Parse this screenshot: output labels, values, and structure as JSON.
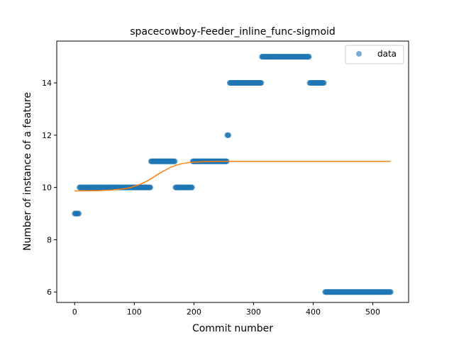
{
  "chart_data": {
    "type": "scatter",
    "title": "spacecowboy-Feeder_inline_func-sigmoid",
    "xlabel": "Commit number",
    "ylabel": "Number of instance of a feature",
    "xlim": [
      -30,
      560
    ],
    "ylim": [
      5.6,
      15.6
    ],
    "xticks": [
      0,
      100,
      200,
      300,
      400,
      500
    ],
    "yticks": [
      6,
      8,
      10,
      12,
      14
    ],
    "grid": false,
    "legend": {
      "location": "top-right",
      "entries": [
        "data"
      ]
    },
    "colors": {
      "data": "#1f77b4",
      "fit": "#ff7f0e"
    },
    "series": [
      {
        "name": "data",
        "kind": "scatter",
        "segments": [
          {
            "x_start": 0,
            "x_end": 7,
            "y": 9
          },
          {
            "x_start": 8,
            "x_end": 127,
            "y": 10
          },
          {
            "x_start": 128,
            "x_end": 168,
            "y": 11
          },
          {
            "x_start": 169,
            "x_end": 197,
            "y": 10
          },
          {
            "x_start": 198,
            "x_end": 255,
            "y": 11
          },
          {
            "x_start": 256,
            "x_end": 258,
            "y": 12
          },
          {
            "x_start": 260,
            "x_end": 313,
            "y": 14
          },
          {
            "x_start": 314,
            "x_end": 393,
            "y": 15
          },
          {
            "x_start": 394,
            "x_end": 418,
            "y": 14
          },
          {
            "x_start": 420,
            "x_end": 530,
            "y": 6
          }
        ]
      },
      {
        "kind": "line",
        "x": [
          0,
          40,
          60,
          80,
          90,
          100,
          110,
          120,
          130,
          140,
          150,
          160,
          170,
          180,
          190,
          200,
          220,
          250,
          300,
          400,
          530
        ],
        "y": [
          9.87,
          9.88,
          9.9,
          9.94,
          9.98,
          10.04,
          10.12,
          10.23,
          10.36,
          10.51,
          10.64,
          10.76,
          10.85,
          10.91,
          10.95,
          10.97,
          10.99,
          11.0,
          11.0,
          11.0,
          11.0
        ]
      }
    ]
  }
}
